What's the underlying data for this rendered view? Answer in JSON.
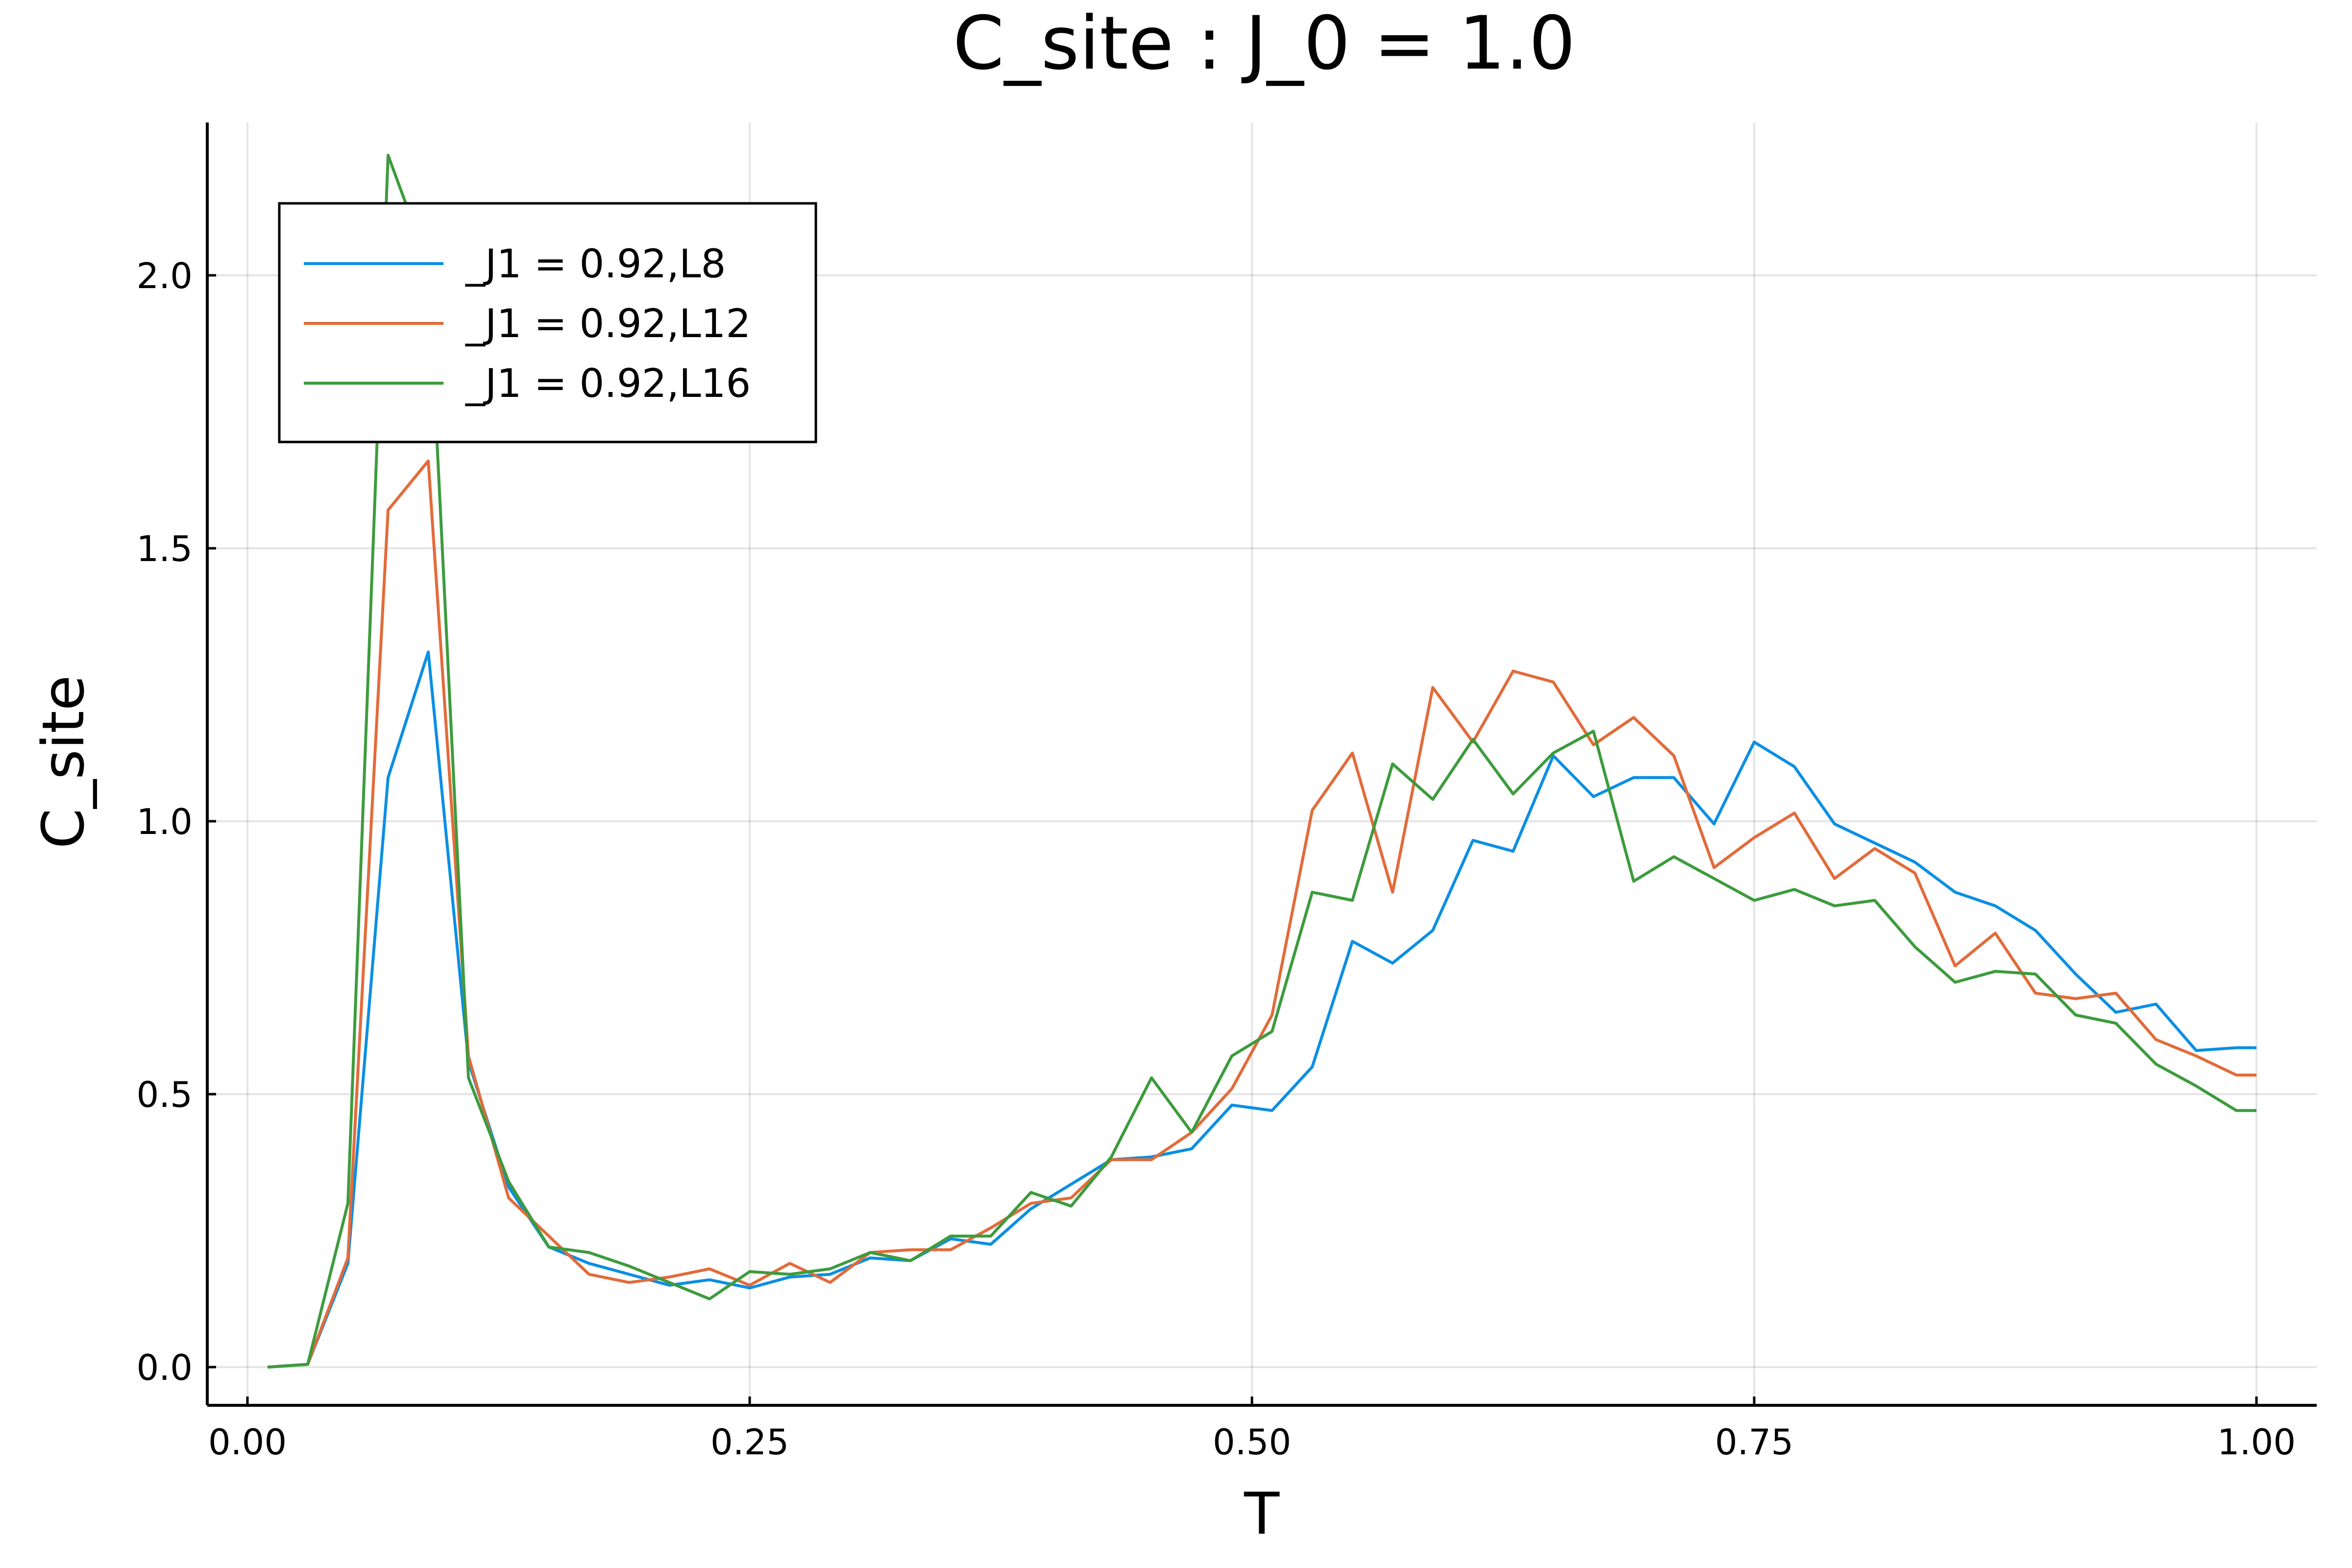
{
  "chart_data": {
    "type": "line",
    "title": "C_site : J_0 = 1.0",
    "xlabel": "T",
    "ylabel": "C_site",
    "xlim": [
      -0.02,
      1.03
    ],
    "ylim": [
      -0.07,
      2.28
    ],
    "xticks": [
      0.0,
      0.25,
      0.5,
      0.75,
      1.0
    ],
    "xtick_labels": [
      "0.00",
      "0.25",
      "0.50",
      "0.75",
      "1.00"
    ],
    "yticks": [
      0.0,
      0.5,
      1.0,
      1.5,
      2.0
    ],
    "ytick_labels": [
      "0.0",
      "0.5",
      "1.0",
      "1.5",
      "2.0"
    ],
    "grid": true,
    "legend_position": "top-left",
    "x": [
      0.01,
      0.03,
      0.05,
      0.07,
      0.09,
      0.11,
      0.13,
      0.15,
      0.17,
      0.19,
      0.21,
      0.23,
      0.25,
      0.27,
      0.29,
      0.31,
      0.33,
      0.35,
      0.37,
      0.39,
      0.41,
      0.43,
      0.45,
      0.47,
      0.49,
      0.51,
      0.53,
      0.55,
      0.57,
      0.59,
      0.61,
      0.63,
      0.65,
      0.67,
      0.69,
      0.71,
      0.73,
      0.75,
      0.77,
      0.79,
      0.81,
      0.83,
      0.85,
      0.87,
      0.89,
      0.91,
      0.93,
      0.95,
      0.97,
      0.99,
      1.0
    ],
    "series": [
      {
        "name": "_J1 = 0.92,L8",
        "color": "#0b8fe3",
        "values": [
          0.0,
          0.005,
          0.19,
          1.08,
          1.31,
          0.56,
          0.33,
          0.22,
          0.19,
          0.17,
          0.15,
          0.16,
          0.145,
          0.165,
          0.17,
          0.2,
          0.195,
          0.235,
          0.225,
          0.29,
          0.335,
          0.38,
          0.385,
          0.4,
          0.48,
          0.47,
          0.55,
          0.78,
          0.74,
          0.8,
          0.965,
          0.945,
          1.12,
          1.045,
          1.08,
          1.08,
          0.995,
          1.145,
          1.1,
          0.995,
          0.96,
          0.925,
          0.87,
          0.845,
          0.8,
          0.72,
          0.65,
          0.665,
          0.58,
          0.585,
          0.585
        ]
      },
      {
        "name": "_J1 = 0.92,L12",
        "color": "#e26b3a",
        "values": [
          0.0,
          0.005,
          0.2,
          1.57,
          1.66,
          0.57,
          0.31,
          0.24,
          0.17,
          0.155,
          0.165,
          0.18,
          0.15,
          0.19,
          0.155,
          0.21,
          0.215,
          0.215,
          0.255,
          0.3,
          0.31,
          0.38,
          0.38,
          0.43,
          0.51,
          0.645,
          1.02,
          1.125,
          0.87,
          1.245,
          1.145,
          1.275,
          1.255,
          1.14,
          1.19,
          1.12,
          0.915,
          0.97,
          1.015,
          0.895,
          0.95,
          0.905,
          0.735,
          0.795,
          0.685,
          0.675,
          0.685,
          0.6,
          0.57,
          0.535,
          0.535
        ]
      },
      {
        "name": "_J1 = 0.92,L16",
        "color": "#3d9b3d",
        "values": [
          0.0,
          0.005,
          0.3,
          2.22,
          2.02,
          0.53,
          0.34,
          0.22,
          0.21,
          0.185,
          0.155,
          0.125,
          0.175,
          0.17,
          0.18,
          0.21,
          0.195,
          0.24,
          0.24,
          0.32,
          0.295,
          0.385,
          0.53,
          0.43,
          0.57,
          0.615,
          0.87,
          0.855,
          1.105,
          1.04,
          1.15,
          1.05,
          1.125,
          1.165,
          0.89,
          0.935,
          0.895,
          0.855,
          0.875,
          0.845,
          0.855,
          0.77,
          0.705,
          0.725,
          0.72,
          0.645,
          0.63,
          0.555,
          0.515,
          0.47,
          0.47
        ]
      }
    ]
  }
}
